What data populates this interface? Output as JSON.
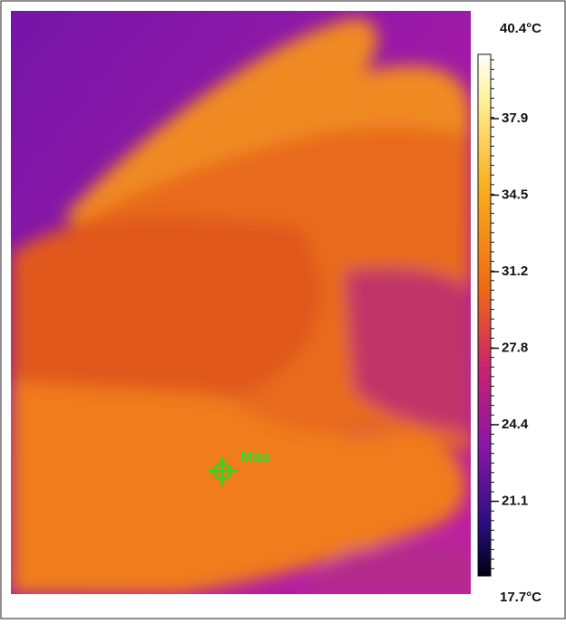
{
  "scale": {
    "max_label": "40.4°C",
    "min_label": "17.7°C",
    "ticks": [
      37.9,
      34.5,
      31.2,
      27.8,
      24.4,
      21.1
    ]
  },
  "marker": {
    "label": "Max"
  }
}
